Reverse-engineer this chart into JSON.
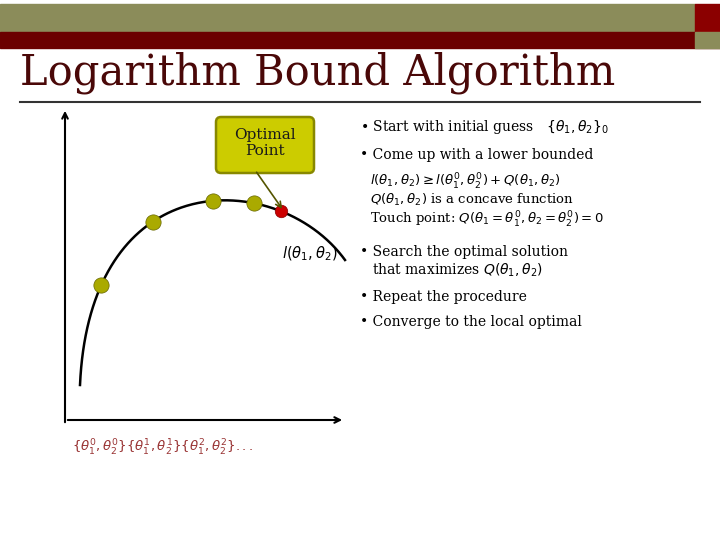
{
  "title": "Logarithm Bound Algorithm",
  "bg_color": "#ffffff",
  "header_bar_top_color": "#8b8c5a",
  "header_bar_bottom_color": "#6b0000",
  "header_bar_accent_color_right": "#8b0000",
  "header_bar_accent_color_small": "#8b8c5a",
  "title_fontsize": 30,
  "title_color": "#4a0808",
  "curve_color": "#000000",
  "dot_color_yellow": "#aaaa00",
  "dot_color_red": "#cc0000",
  "optimal_box_facecolor": "#cccc00",
  "optimal_box_edgecolor": "#888800",
  "optimal_text": "Optimal\nPoint",
  "formula_label": "$l(\\theta_1, \\theta_2)$",
  "bottom_label_color": "#993333"
}
